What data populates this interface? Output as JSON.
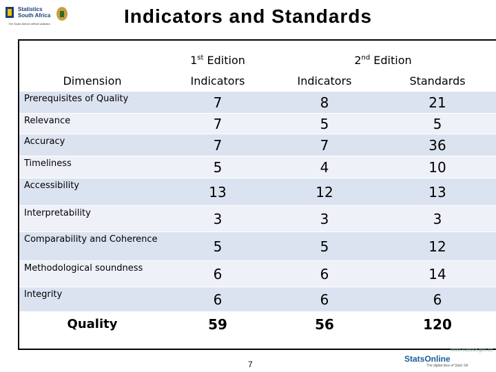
{
  "logo": {
    "line1": "Statistics",
    "line2": "South Africa",
    "tagline": "The South African official statistics"
  },
  "title": "Indicators and Standards",
  "table": {
    "edition1": "1st Edition",
    "edition2": "2nd Edition",
    "dimension_header": "Dimension",
    "col1_header": "Indicators",
    "col2_header": "Indicators",
    "col3_header": "Standards",
    "rows": [
      {
        "name": "Prerequisites of Quality",
        "ed1_indicators": "7",
        "ed2_indicators": "8",
        "ed2_standards": "21"
      },
      {
        "name": "Relevance",
        "ed1_indicators": "7",
        "ed2_indicators": "5",
        "ed2_standards": "5"
      },
      {
        "name": "Accuracy",
        "ed1_indicators": "7",
        "ed2_indicators": "7",
        "ed2_standards": "36"
      },
      {
        "name": "Timeliness",
        "ed1_indicators": "5",
        "ed2_indicators": "4",
        "ed2_standards": "10"
      },
      {
        "name": "Accessibility",
        "ed1_indicators": "13",
        "ed2_indicators": "12",
        "ed2_standards": "13"
      },
      {
        "name": "Interpretability",
        "ed1_indicators": "3",
        "ed2_indicators": "3",
        "ed2_standards": "3"
      },
      {
        "name": "Comparability and Coherence",
        "ed1_indicators": "5",
        "ed2_indicators": "5",
        "ed2_standards": "12"
      },
      {
        "name": "Methodological soundness",
        "ed1_indicators": "6",
        "ed2_indicators": "6",
        "ed2_standards": "14"
      },
      {
        "name": "Integrity",
        "ed1_indicators": "6",
        "ed2_indicators": "6",
        "ed2_standards": "6"
      }
    ],
    "total": {
      "name": "Quality",
      "ed1_indicators": "59",
      "ed2_indicators": "56",
      "ed2_standards": "120"
    }
  },
  "page_number": "7",
  "footer": {
    "url": "www.statssa.gov.za",
    "brand": "StatsOnline",
    "tagline": "The digital face of Stats SA"
  },
  "colors": {
    "row_dark": "#dce3f0",
    "row_light": "#eef1f8"
  }
}
